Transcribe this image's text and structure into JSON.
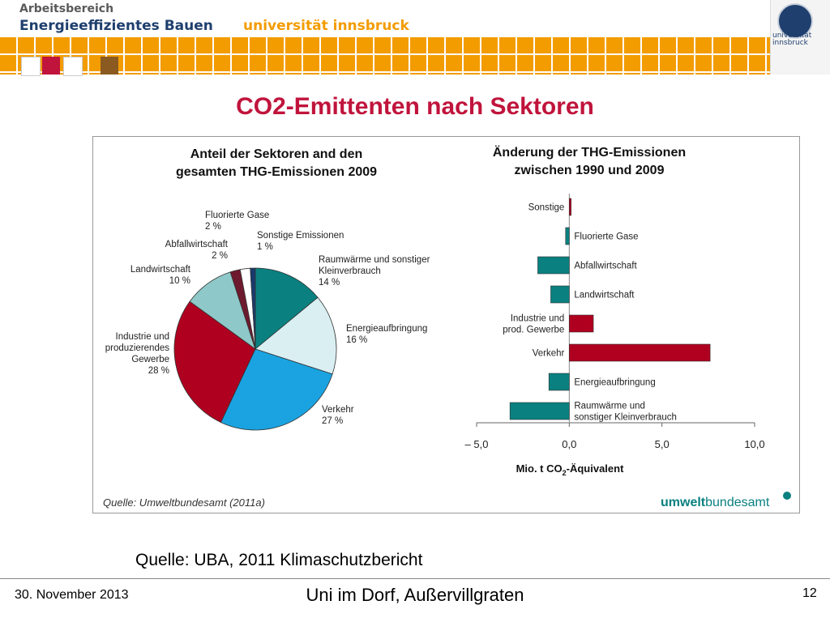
{
  "header": {
    "line1": "Arbeitsbereich",
    "line2": "Energieeffizientes Bauen",
    "university": "universität innsbruck",
    "seal_text_1": "universität",
    "seal_text_2": "innsbruck"
  },
  "slide": {
    "title": "CO2-Emittenten nach Sektoren",
    "source_note": "Quelle: UBA, 2011 Klimaschutzbericht"
  },
  "footer": {
    "date": "30. November 2013",
    "center": "Uni im Dorf, Außervillgraten",
    "page": "12"
  },
  "figure": {
    "source": "Quelle: Umweltbundesamt (2011a)",
    "brand_part1": "umwelt",
    "brand_part2": "bundesamt"
  },
  "colors": {
    "accent_red": "#c0143c",
    "teal": "#0a8080",
    "light_cyan": "#d9eff2",
    "blue": "#1aa3e0",
    "dark_red": "#b00020",
    "light_teal": "#8fc8c8",
    "maroon": "#6e1a2e",
    "navy": "#1a3a6e"
  },
  "chart_data": [
    {
      "type": "pie",
      "title": "Anteil der Sektoren and den gesamten THG-Emissionen 2009",
      "title_line1": "Anteil der Sektoren and den",
      "title_line2": "gesamten THG-Emissionen 2009",
      "slices": [
        {
          "label": "Raumwärme und sonstiger Kleinverbrauch",
          "lines": [
            "Raumwärme und sonstiger",
            "Kleinverbrauch",
            "14 %"
          ],
          "value": 14,
          "color": "#0a8080"
        },
        {
          "label": "Energieaufbringung",
          "lines": [
            "Energieaufbringung",
            "16 %"
          ],
          "value": 16,
          "color": "#d9eff2"
        },
        {
          "label": "Verkehr",
          "lines": [
            "Verkehr",
            "27 %"
          ],
          "value": 27,
          "color": "#1aa3e0"
        },
        {
          "label": "Industrie und produzierendes Gewerbe",
          "lines": [
            "Industrie und",
            "produzierendes",
            "Gewerbe",
            "28 %"
          ],
          "value": 28,
          "color": "#b00020"
        },
        {
          "label": "Landwirtschaft",
          "lines": [
            "Landwirtschaft",
            "10 %"
          ],
          "value": 10,
          "color": "#8fc8c8"
        },
        {
          "label": "Abfallwirtschaft",
          "lines": [
            "Abfallwirtschaft",
            "2 %"
          ],
          "value": 2,
          "color": "#6e1a2e"
        },
        {
          "label": "Fluorierte Gase",
          "lines": [
            "Fluorierte Gase",
            "2 %"
          ],
          "value": 2,
          "color": "#ffffff"
        },
        {
          "label": "Sonstige Emissionen",
          "lines": [
            "Sonstige Emissionen",
            "1 %"
          ],
          "value": 1,
          "color": "#1a3a6e"
        }
      ]
    },
    {
      "type": "bar",
      "orientation": "horizontal",
      "title": "Änderung der THG-Emissionen zwischen 1990 und 2009",
      "title_line1": "Änderung der THG-Emissionen",
      "title_line2": "zwischen 1990 und 2009",
      "xlabel": "Mio. t CO2-Äquivalent",
      "xlim": [
        -5,
        10
      ],
      "xticks": [
        -5,
        0,
        5,
        10
      ],
      "xtick_labels": [
        "– 5,0",
        "0,0",
        "5,0",
        "10,0"
      ],
      "bars": [
        {
          "label": "Sonstige",
          "lines": [
            "Sonstige"
          ],
          "value": 0.1,
          "color": "#b00020"
        },
        {
          "label": "Fluorierte Gase",
          "lines": [
            "Fluorierte Gase"
          ],
          "value": -0.2,
          "color": "#0a8080"
        },
        {
          "label": "Abfallwirtschaft",
          "lines": [
            "Abfallwirtschaft"
          ],
          "value": -1.7,
          "color": "#0a8080"
        },
        {
          "label": "Landwirtschaft",
          "lines": [
            "Landwirtschaft"
          ],
          "value": -1.0,
          "color": "#0a8080"
        },
        {
          "label": "Industrie und prod. Gewerbe",
          "lines": [
            "Industrie und",
            "prod. Gewerbe"
          ],
          "value": 1.3,
          "color": "#b00020"
        },
        {
          "label": "Verkehr",
          "lines": [
            "Verkehr"
          ],
          "value": 7.6,
          "color": "#b00020"
        },
        {
          "label": "Energieaufbringung",
          "lines": [
            "Energieaufbringung"
          ],
          "value": -1.1,
          "color": "#0a8080"
        },
        {
          "label": "Raumwärme und sonstiger Kleinverbrauch",
          "lines": [
            "Raumwärme und",
            "sonstiger Kleinverbrauch"
          ],
          "value": -3.2,
          "color": "#0a8080"
        }
      ]
    }
  ]
}
